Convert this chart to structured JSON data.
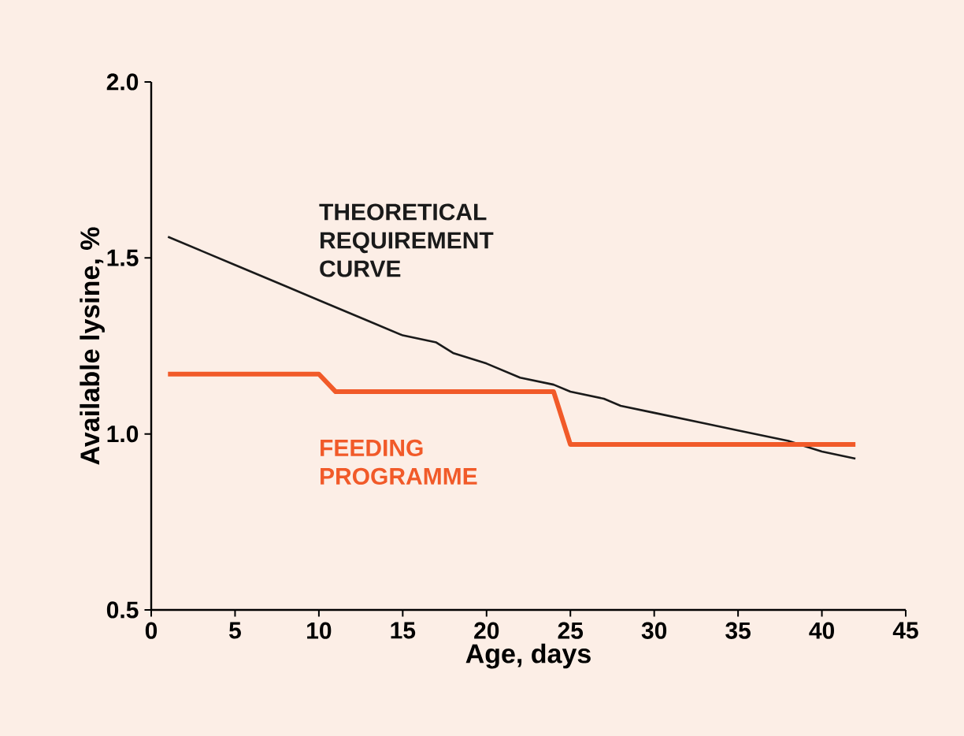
{
  "chart_data": {
    "type": "line",
    "xlabel": "Age, days",
    "ylabel": "Available lysine, %",
    "xlim": [
      0,
      45
    ],
    "xticks": [
      0,
      5,
      10,
      15,
      20,
      25,
      30,
      35,
      40,
      45
    ],
    "ylim": [
      0.5,
      2.0
    ],
    "yticks": [
      {
        "value": 0.5,
        "label": "0.5"
      },
      {
        "value": 1.0,
        "label": "1.0"
      },
      {
        "value": 1.5,
        "label": "1.5"
      },
      {
        "value": 2.0,
        "label": "2.0"
      }
    ],
    "grid": false,
    "legend": false,
    "marker": "none",
    "line_style": "solid",
    "series": [
      {
        "name": "THEORETICAL REQUIREMENT CURVE",
        "color": "#1a1a1a",
        "x": [
          1,
          3,
          5,
          8,
          10,
          13,
          15,
          17,
          18,
          20,
          22,
          24,
          25,
          27,
          28,
          30,
          33,
          35,
          38,
          40,
          42
        ],
        "values": [
          1.56,
          1.52,
          1.48,
          1.42,
          1.38,
          1.32,
          1.28,
          1.26,
          1.23,
          1.2,
          1.16,
          1.14,
          1.12,
          1.1,
          1.08,
          1.06,
          1.03,
          1.01,
          0.98,
          0.95,
          0.93
        ]
      },
      {
        "name": "FEEDING PROGRAMME",
        "color": "#f15a29",
        "x": [
          1,
          10,
          11,
          24,
          25,
          42
        ],
        "values": [
          1.17,
          1.17,
          1.12,
          1.12,
          0.97,
          0.97
        ]
      }
    ]
  }
}
